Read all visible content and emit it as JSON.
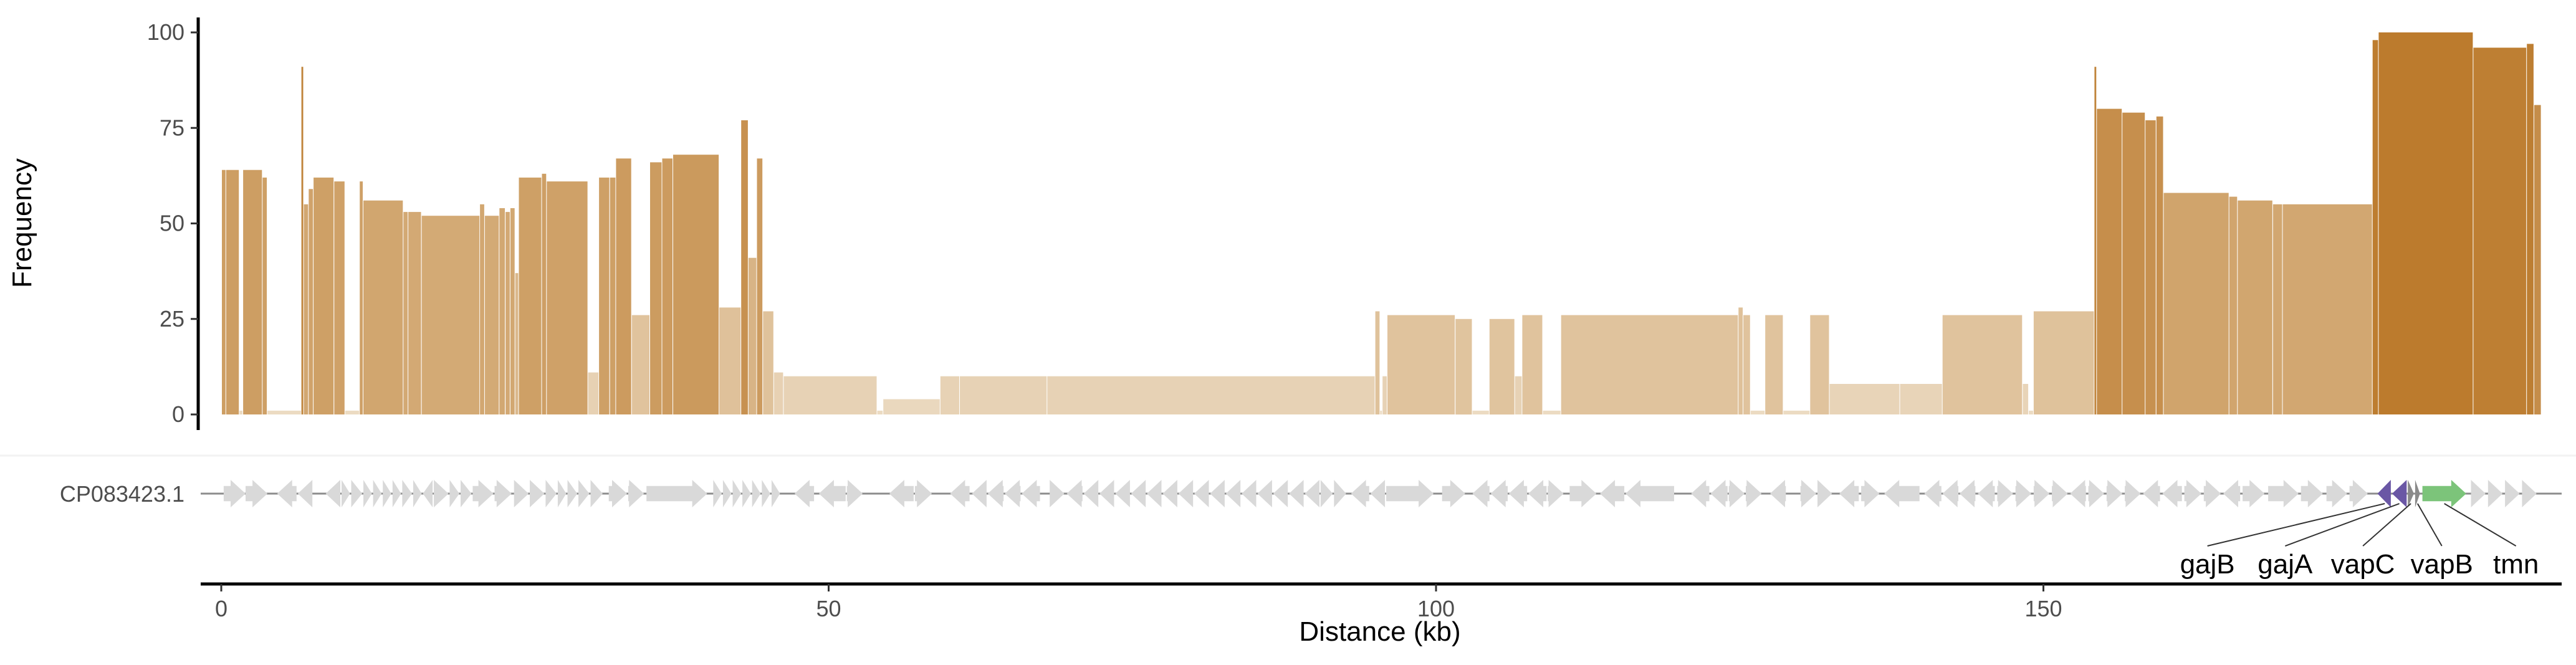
{
  "chart_data": [
    {
      "type": "bar",
      "panel": "frequency",
      "ylabel": "Frequency",
      "ylim": [
        0,
        100
      ],
      "yticks": [
        0,
        25,
        50,
        75,
        100
      ],
      "xlim": [
        0,
        192.5
      ],
      "bar_colors": {
        "low": "#ecdcc4",
        "high": "#bc7b2d"
      },
      "bars": [
        [
          0.05,
          0.4,
          64
        ],
        [
          0.4,
          1.5,
          64
        ],
        [
          1.5,
          1.8,
          1
        ],
        [
          1.8,
          3.4,
          64
        ],
        [
          3.4,
          3.8,
          62
        ],
        [
          3.8,
          6.6,
          1
        ],
        [
          6.6,
          6.8,
          91
        ],
        [
          6.8,
          7.2,
          55
        ],
        [
          7.2,
          7.6,
          59
        ],
        [
          7.6,
          9.3,
          62
        ],
        [
          9.3,
          10.2,
          61
        ],
        [
          10.2,
          11.4,
          1
        ],
        [
          11.4,
          11.7,
          61
        ],
        [
          11.7,
          15.0,
          56
        ],
        [
          15.0,
          15.4,
          53
        ],
        [
          15.4,
          16.5,
          53
        ],
        [
          16.5,
          21.3,
          52
        ],
        [
          21.3,
          21.7,
          55
        ],
        [
          21.7,
          22.9,
          52
        ],
        [
          22.9,
          23.4,
          54
        ],
        [
          23.4,
          23.8,
          53
        ],
        [
          23.8,
          24.2,
          54
        ],
        [
          24.2,
          24.5,
          37
        ],
        [
          24.5,
          26.4,
          62
        ],
        [
          26.4,
          26.8,
          63
        ],
        [
          26.8,
          30.2,
          61
        ],
        [
          30.2,
          31.1,
          11
        ],
        [
          31.1,
          32.0,
          62
        ],
        [
          32.0,
          32.5,
          62
        ],
        [
          32.5,
          33.8,
          67
        ],
        [
          33.8,
          35.3,
          26
        ],
        [
          35.3,
          36.3,
          66
        ],
        [
          36.3,
          37.2,
          67
        ],
        [
          37.2,
          41.0,
          68
        ],
        [
          41.0,
          42.8,
          28
        ],
        [
          42.8,
          43.4,
          77
        ],
        [
          43.4,
          44.1,
          41
        ],
        [
          44.1,
          44.6,
          67
        ],
        [
          44.6,
          45.5,
          27
        ],
        [
          45.5,
          46.3,
          11
        ],
        [
          46.3,
          54.0,
          10
        ],
        [
          54.0,
          54.5,
          1
        ],
        [
          54.5,
          59.2,
          4
        ],
        [
          59.2,
          60.8,
          10
        ],
        [
          60.8,
          68.0,
          10
        ],
        [
          68.0,
          95.0,
          10
        ],
        [
          95.0,
          95.4,
          27
        ],
        [
          95.4,
          95.6,
          1
        ],
        [
          95.6,
          96.0,
          10
        ],
        [
          96.0,
          101.6,
          26
        ],
        [
          101.6,
          103.0,
          25
        ],
        [
          103.0,
          104.4,
          1
        ],
        [
          104.4,
          106.5,
          25
        ],
        [
          106.5,
          107.1,
          10
        ],
        [
          107.1,
          108.8,
          26
        ],
        [
          108.8,
          110.3,
          1
        ],
        [
          110.3,
          124.9,
          26
        ],
        [
          124.9,
          125.3,
          28
        ],
        [
          125.3,
          125.9,
          26
        ],
        [
          125.9,
          127.1,
          1
        ],
        [
          127.1,
          128.6,
          26
        ],
        [
          128.6,
          130.8,
          1
        ],
        [
          130.8,
          132.4,
          26
        ],
        [
          132.4,
          138.2,
          8
        ],
        [
          138.2,
          141.7,
          8
        ],
        [
          141.7,
          148.3,
          26
        ],
        [
          148.3,
          148.8,
          8
        ],
        [
          148.8,
          149.2,
          1
        ],
        [
          149.2,
          154.2,
          27
        ],
        [
          154.2,
          154.4,
          91
        ],
        [
          154.4,
          156.5,
          80
        ],
        [
          156.5,
          158.4,
          79
        ],
        [
          158.4,
          159.3,
          77
        ],
        [
          159.3,
          159.9,
          78
        ],
        [
          159.9,
          165.3,
          58
        ],
        [
          165.3,
          166.0,
          57
        ],
        [
          166.0,
          168.9,
          56
        ],
        [
          168.9,
          169.7,
          55
        ],
        [
          169.7,
          177.1,
          55
        ],
        [
          177.1,
          177.6,
          98
        ],
        [
          177.6,
          185.4,
          100
        ],
        [
          185.4,
          189.8,
          96
        ],
        [
          189.8,
          190.4,
          97
        ],
        [
          190.4,
          191.0,
          81
        ]
      ]
    },
    {
      "type": "gene-map",
      "panel": "genes",
      "sequence": "CP083423.1",
      "xlabel": "Distance (kb)",
      "xlim": [
        0,
        192.5
      ],
      "xticks": [
        0,
        50,
        100,
        150
      ],
      "default_gene_color": "#d9d9d9",
      "genes": [
        [
          0.2,
          2.0,
          1
        ],
        [
          2.0,
          3.8,
          1
        ],
        [
          4.6,
          6.2,
          -1
        ],
        [
          6.3,
          7.5,
          -1
        ],
        [
          8.6,
          9.8,
          -1
        ],
        [
          9.9,
          10.6,
          1
        ],
        [
          10.7,
          11.6,
          1
        ],
        [
          11.7,
          12.4,
          1
        ],
        [
          12.5,
          13.2,
          1
        ],
        [
          13.3,
          14.0,
          1
        ],
        [
          14.1,
          14.8,
          1
        ],
        [
          14.9,
          15.7,
          1
        ],
        [
          15.8,
          16.5,
          1
        ],
        [
          16.6,
          17.4,
          -1
        ],
        [
          17.5,
          18.7,
          1
        ],
        [
          18.8,
          19.6,
          1
        ],
        [
          19.7,
          20.6,
          1
        ],
        [
          20.7,
          22.4,
          1
        ],
        [
          22.5,
          23.9,
          1
        ],
        [
          24.1,
          25.3,
          1
        ],
        [
          25.4,
          26.6,
          1
        ],
        [
          26.7,
          27.6,
          1
        ],
        [
          27.7,
          28.4,
          1
        ],
        [
          28.5,
          29.3,
          1
        ],
        [
          29.4,
          30.3,
          1
        ],
        [
          30.4,
          31.4,
          1
        ],
        [
          31.9,
          33.4,
          1
        ],
        [
          33.5,
          34.8,
          1
        ],
        [
          35.0,
          40.0,
          1
        ],
        [
          40.5,
          41.2,
          1
        ],
        [
          41.3,
          42.0,
          1
        ],
        [
          42.1,
          42.8,
          1
        ],
        [
          42.9,
          43.6,
          1
        ],
        [
          43.7,
          44.4,
          1
        ],
        [
          44.5,
          45.2,
          1
        ],
        [
          45.3,
          46.0,
          1
        ],
        [
          47.2,
          48.8,
          -1
        ],
        [
          49.2,
          51.4,
          -1
        ],
        [
          51.5,
          52.8,
          1
        ],
        [
          55.0,
          57.0,
          -1
        ],
        [
          57.1,
          58.5,
          1
        ],
        [
          60.0,
          61.6,
          -1
        ],
        [
          61.8,
          63.0,
          -1
        ],
        [
          63.1,
          64.4,
          -1
        ],
        [
          64.5,
          65.8,
          -1
        ],
        [
          65.9,
          67.4,
          -1
        ],
        [
          68.2,
          69.4,
          1
        ],
        [
          69.6,
          70.9,
          -1
        ],
        [
          71.0,
          72.2,
          -1
        ],
        [
          72.3,
          73.5,
          -1
        ],
        [
          73.6,
          74.8,
          -1
        ],
        [
          74.9,
          76.1,
          -1
        ],
        [
          76.2,
          77.4,
          -1
        ],
        [
          77.5,
          78.7,
          -1
        ],
        [
          78.8,
          80.0,
          -1
        ],
        [
          80.1,
          81.3,
          -1
        ],
        [
          81.4,
          82.6,
          -1
        ],
        [
          82.7,
          83.9,
          -1
        ],
        [
          84.0,
          85.2,
          -1
        ],
        [
          85.3,
          86.5,
          -1
        ],
        [
          86.6,
          87.8,
          -1
        ],
        [
          87.9,
          89.1,
          -1
        ],
        [
          89.2,
          90.4,
          -1
        ],
        [
          90.5,
          91.5,
          1
        ],
        [
          91.6,
          92.6,
          1
        ],
        [
          93.0,
          94.5,
          -1
        ],
        [
          94.6,
          95.8,
          -1
        ],
        [
          95.9,
          99.8,
          1
        ],
        [
          100.5,
          102.4,
          1
        ],
        [
          103.0,
          104.4,
          -1
        ],
        [
          104.5,
          105.9,
          -1
        ],
        [
          106.0,
          107.5,
          -1
        ],
        [
          107.6,
          109.1,
          -1
        ],
        [
          109.2,
          110.5,
          1
        ],
        [
          111.0,
          113.2,
          1
        ],
        [
          113.5,
          115.5,
          -1
        ],
        [
          115.6,
          119.6,
          -1
        ],
        [
          121.0,
          122.5,
          -1
        ],
        [
          122.6,
          124.0,
          -1
        ],
        [
          124.1,
          125.4,
          1
        ],
        [
          125.5,
          126.8,
          1
        ],
        [
          127.5,
          128.8,
          -1
        ],
        [
          130.0,
          131.3,
          1
        ],
        [
          131.4,
          132.6,
          1
        ],
        [
          133.2,
          134.8,
          -1
        ],
        [
          135.0,
          136.5,
          1
        ],
        [
          136.9,
          139.8,
          -1
        ],
        [
          140.2,
          141.6,
          -1
        ],
        [
          141.7,
          143.0,
          -1
        ],
        [
          143.1,
          144.4,
          -1
        ],
        [
          144.6,
          146.0,
          -1
        ],
        [
          146.2,
          147.5,
          1
        ],
        [
          147.7,
          149.0,
          1
        ],
        [
          149.2,
          150.5,
          1
        ],
        [
          150.7,
          152.0,
          1
        ],
        [
          152.2,
          153.5,
          -1
        ],
        [
          153.7,
          155.0,
          1
        ],
        [
          155.2,
          156.5,
          1
        ],
        [
          156.7,
          158.0,
          1
        ],
        [
          158.2,
          159.6,
          -1
        ],
        [
          159.8,
          161.4,
          -1
        ],
        [
          161.6,
          163.0,
          1
        ],
        [
          163.2,
          164.6,
          1
        ],
        [
          164.8,
          166.2,
          -1
        ],
        [
          166.4,
          168.2,
          1
        ],
        [
          168.5,
          171.0,
          1
        ],
        [
          171.2,
          173.0,
          1
        ],
        [
          173.3,
          175.0,
          1
        ],
        [
          175.2,
          176.7,
          1
        ],
        [
          177.5,
          178.6,
          -1,
          "#6a57a5"
        ],
        [
          178.7,
          179.9,
          -1,
          "#6a57a5"
        ],
        [
          180.0,
          180.5,
          1,
          "#8a8a8a"
        ],
        [
          180.6,
          181.0,
          1,
          "#8a8a8a"
        ],
        [
          181.2,
          184.8,
          1,
          "#7cc47a"
        ],
        [
          185.2,
          186.4,
          1
        ],
        [
          186.6,
          187.8,
          1
        ],
        [
          188.0,
          189.2,
          1
        ],
        [
          189.4,
          190.6,
          1
        ]
      ],
      "labeled_genes": [
        {
          "name": "gajB",
          "gene_x": 178.1,
          "label_x": 163.5
        },
        {
          "name": "gajA",
          "gene_x": 179.3,
          "label_x": 169.9
        },
        {
          "name": "vapC",
          "gene_x": 180.25,
          "label_x": 176.3
        },
        {
          "name": "vapB",
          "gene_x": 180.8,
          "label_x": 182.8
        },
        {
          "name": "tmn",
          "gene_x": 183.0,
          "label_x": 188.9
        }
      ]
    }
  ]
}
